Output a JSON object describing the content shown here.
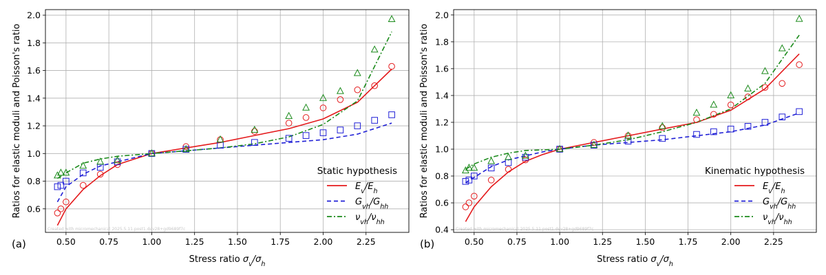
{
  "chart_data": [
    {
      "type": "line",
      "panel_label": "(a)",
      "xlabel": "Stress ratio σv/σh",
      "ylabel": "Ratios for elastic moduli and Poisson's ratio",
      "xlim": [
        0.38,
        2.5
      ],
      "ylim": [
        0.43,
        2.04
      ],
      "xticks": [
        "0.50",
        "0.75",
        "1.00",
        "1.25",
        "1.50",
        "1.75",
        "2.00",
        "2.25"
      ],
      "yticks": [
        "0.6",
        "0.8",
        "1.0",
        "1.2",
        "1.4",
        "1.6",
        "1.8",
        "2.0"
      ],
      "grid": true,
      "legend": {
        "title": "Static hypothesis",
        "placement": "lower-right"
      },
      "watermark": "Created with micromechanical 2025.5.11.post1.dev28+gd9689f7c",
      "series": [
        {
          "name": "Ev/Eh",
          "style": "solid",
          "color": "#e41a1c",
          "x": [
            0.45,
            0.5,
            0.6,
            0.7,
            0.8,
            0.9,
            1.0,
            1.2,
            1.4,
            1.6,
            1.8,
            2.0,
            2.2,
            2.4
          ],
          "y": [
            0.48,
            0.6,
            0.74,
            0.84,
            0.92,
            0.96,
            1.0,
            1.04,
            1.08,
            1.13,
            1.18,
            1.25,
            1.37,
            1.61
          ]
        },
        {
          "name": "Gvh/Ghh",
          "style": "dashed",
          "color": "#1f1fd6",
          "x": [
            0.45,
            0.5,
            0.6,
            0.7,
            0.8,
            0.9,
            1.0,
            1.2,
            1.4,
            1.6,
            1.8,
            2.0,
            2.2,
            2.4
          ],
          "y": [
            0.65,
            0.76,
            0.85,
            0.91,
            0.94,
            0.97,
            1.0,
            1.02,
            1.04,
            1.06,
            1.08,
            1.1,
            1.14,
            1.22
          ]
        },
        {
          "name": "νvh/νhh",
          "style": "dashdot",
          "color": "#1a8a1a",
          "x": [
            0.45,
            0.5,
            0.6,
            0.7,
            0.8,
            0.9,
            1.0,
            1.2,
            1.4,
            1.6,
            1.8,
            2.0,
            2.2,
            2.4
          ],
          "y": [
            0.82,
            0.86,
            0.93,
            0.96,
            0.98,
            0.99,
            1.0,
            1.02,
            1.04,
            1.07,
            1.12,
            1.21,
            1.38,
            1.88
          ]
        }
      ],
      "markers": [
        {
          "series": "Ev/Eh",
          "shape": "circle",
          "color": "#e41a1c",
          "x": [
            0.45,
            0.47,
            0.5,
            0.6,
            0.7,
            0.8,
            1.0,
            1.2,
            1.4,
            1.6,
            1.8,
            1.9,
            2.0,
            2.1,
            2.2,
            2.3,
            2.4
          ],
          "y": [
            0.57,
            0.6,
            0.65,
            0.77,
            0.85,
            0.92,
            1.0,
            1.05,
            1.1,
            1.16,
            1.22,
            1.26,
            1.33,
            1.39,
            1.46,
            1.49,
            1.63
          ]
        },
        {
          "series": "Gvh/Ghh",
          "shape": "square",
          "color": "#1f1fd6",
          "x": [
            0.45,
            0.47,
            0.5,
            0.6,
            0.7,
            0.8,
            1.0,
            1.2,
            1.4,
            1.6,
            1.8,
            1.9,
            2.0,
            2.1,
            2.2,
            2.3,
            2.4
          ],
          "y": [
            0.76,
            0.77,
            0.8,
            0.86,
            0.9,
            0.94,
            1.0,
            1.03,
            1.06,
            1.08,
            1.11,
            1.13,
            1.15,
            1.17,
            1.2,
            1.24,
            1.28
          ]
        },
        {
          "series": "νvh/νhh",
          "shape": "triangle",
          "color": "#1a8a1a",
          "x": [
            0.45,
            0.47,
            0.5,
            0.6,
            0.7,
            0.8,
            1.0,
            1.2,
            1.4,
            1.6,
            1.8,
            1.9,
            2.0,
            2.1,
            2.2,
            2.3,
            2.4
          ],
          "y": [
            0.84,
            0.86,
            0.86,
            0.91,
            0.94,
            0.95,
            1.0,
            1.03,
            1.1,
            1.17,
            1.27,
            1.33,
            1.4,
            1.45,
            1.58,
            1.75,
            1.97
          ]
        }
      ]
    },
    {
      "type": "line",
      "panel_label": "(b)",
      "xlabel": "Stress ratio σv/σh",
      "ylabel": "Ratios for elastic moduli and Poisson's ratio",
      "xlim": [
        0.38,
        2.5
      ],
      "ylim": [
        0.38,
        2.04
      ],
      "xticks": [
        "0.50",
        "0.75",
        "1.00",
        "1.25",
        "1.50",
        "1.75",
        "2.00",
        "2.25"
      ],
      "yticks": [
        "0.4",
        "0.6",
        "0.8",
        "1.0",
        "1.2",
        "1.4",
        "1.6",
        "1.8",
        "2.0"
      ],
      "grid": true,
      "legend": {
        "title": "Kinematic hypothesis",
        "placement": "lower-right"
      },
      "watermark": "Created with micromechanical 2025.5.11.post1.dev28+gd9689f7c",
      "series": [
        {
          "name": "Ev/Eh",
          "style": "solid",
          "color": "#e41a1c",
          "x": [
            0.45,
            0.5,
            0.6,
            0.7,
            0.8,
            0.9,
            1.0,
            1.2,
            1.4,
            1.6,
            1.8,
            2.0,
            2.2,
            2.4
          ],
          "y": [
            0.46,
            0.57,
            0.72,
            0.83,
            0.91,
            0.96,
            1.0,
            1.05,
            1.1,
            1.15,
            1.2,
            1.29,
            1.45,
            1.71
          ]
        },
        {
          "name": "Gvh/Ghh",
          "style": "dashed",
          "color": "#1f1fd6",
          "x": [
            0.45,
            0.5,
            0.6,
            0.7,
            0.8,
            0.9,
            1.0,
            1.2,
            1.4,
            1.6,
            1.8,
            2.0,
            2.2,
            2.4
          ],
          "y": [
            0.75,
            0.79,
            0.87,
            0.92,
            0.95,
            0.98,
            1.0,
            1.03,
            1.05,
            1.07,
            1.1,
            1.13,
            1.18,
            1.27
          ]
        },
        {
          "name": "νvh/νhh",
          "style": "dashdot",
          "color": "#1a8a1a",
          "x": [
            0.45,
            0.5,
            0.6,
            0.7,
            0.8,
            0.9,
            1.0,
            1.2,
            1.4,
            1.6,
            1.8,
            2.0,
            2.2,
            2.4
          ],
          "y": [
            0.85,
            0.89,
            0.94,
            0.97,
            0.99,
            0.995,
            1.0,
            1.03,
            1.07,
            1.13,
            1.2,
            1.3,
            1.49,
            1.85
          ]
        }
      ],
      "markers": [
        {
          "series": "Ev/Eh",
          "shape": "circle",
          "color": "#e41a1c",
          "x": [
            0.45,
            0.47,
            0.5,
            0.6,
            0.7,
            0.8,
            1.0,
            1.2,
            1.4,
            1.6,
            1.8,
            1.9,
            2.0,
            2.1,
            2.2,
            2.3,
            2.4
          ],
          "y": [
            0.57,
            0.6,
            0.65,
            0.77,
            0.85,
            0.92,
            1.0,
            1.05,
            1.1,
            1.16,
            1.22,
            1.26,
            1.33,
            1.39,
            1.46,
            1.49,
            1.63
          ]
        },
        {
          "series": "Gvh/Ghh",
          "shape": "square",
          "color": "#1f1fd6",
          "x": [
            0.45,
            0.47,
            0.5,
            0.6,
            0.7,
            0.8,
            1.0,
            1.2,
            1.4,
            1.6,
            1.8,
            1.9,
            2.0,
            2.1,
            2.2,
            2.3,
            2.4
          ],
          "y": [
            0.76,
            0.77,
            0.8,
            0.86,
            0.9,
            0.94,
            1.0,
            1.03,
            1.06,
            1.08,
            1.11,
            1.13,
            1.15,
            1.17,
            1.2,
            1.24,
            1.28
          ]
        },
        {
          "series": "νvh/νhh",
          "shape": "triangle",
          "color": "#1a8a1a",
          "x": [
            0.45,
            0.47,
            0.5,
            0.6,
            0.7,
            0.8,
            1.0,
            1.2,
            1.4,
            1.6,
            1.8,
            1.9,
            2.0,
            2.1,
            2.2,
            2.3,
            2.4
          ],
          "y": [
            0.84,
            0.86,
            0.86,
            0.91,
            0.94,
            0.95,
            1.0,
            1.03,
            1.1,
            1.17,
            1.27,
            1.33,
            1.4,
            1.45,
            1.58,
            1.75,
            1.97
          ]
        }
      ]
    }
  ]
}
